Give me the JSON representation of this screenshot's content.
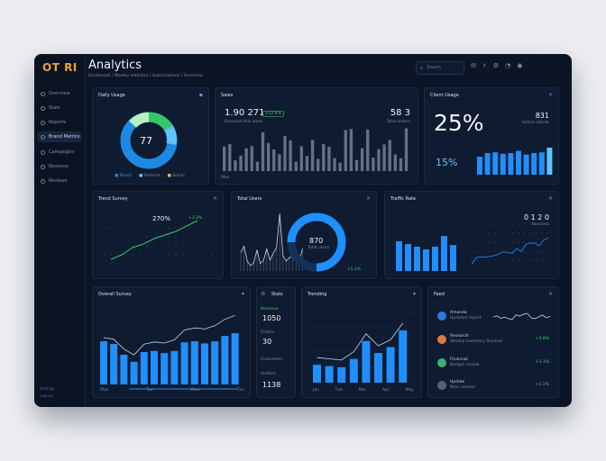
{
  "logo": "OT RI",
  "header": {
    "title": "Analytics",
    "breadcrumb": "Dashboard / Weekly statistics / Subscriptions / Overview",
    "search_placeholder": "Search"
  },
  "sidebar": {
    "items": [
      {
        "label": "Overview"
      },
      {
        "label": "Stats"
      },
      {
        "label": "Reports"
      },
      {
        "label": "Brand Metrics"
      },
      {
        "label": "Campaigns"
      },
      {
        "label": "Revenue"
      },
      {
        "label": "Reviews"
      }
    ],
    "footer": [
      "Settings",
      "Log out"
    ]
  },
  "cards": {
    "daily": {
      "title": "Daily Usage",
      "center": "77",
      "legend": [
        "Direct",
        "Referral",
        "Social"
      ]
    },
    "sales": {
      "title": "Sales",
      "left_value": "1.90 271",
      "badge": "+12.4%",
      "left_sub": "Revenue this week",
      "right_value": "58 3",
      "right_sub": "Total orders",
      "axis_label": "Mon"
    },
    "growth": {
      "title": "Client Usage",
      "big": "25%",
      "right_value": "831",
      "right_sub": "Active clients",
      "bottom": "15%"
    },
    "trend": {
      "title": "Trend Survey",
      "value": "270%",
      "sub": "Monthly change",
      "tag": "+3.2%"
    },
    "gauge": {
      "title": "Total Users",
      "center": "870",
      "center_sub": "Total users",
      "tag": "+5.1%"
    },
    "traffic": {
      "title": "Traffic Rate",
      "value": "0 1 2 0",
      "sub": "Sessions"
    },
    "overview": {
      "title": "Overall Survey",
      "axis": [
        "Mon",
        "Tue",
        "Wed",
        "Thu"
      ]
    },
    "kpi": {
      "title": "Stats",
      "items": [
        {
          "label": "Revenue",
          "value": "1050"
        },
        {
          "label": "Orders",
          "value": "30"
        },
        {
          "label": "Customers",
          "value": ""
        },
        {
          "label": "Visitors",
          "value": "1138"
        }
      ]
    },
    "trending": {
      "title": "Trending",
      "axis": [
        "Jan",
        "Feb",
        "Mar",
        "Apr",
        "May"
      ]
    },
    "feed": {
      "title": "Feed",
      "rows": [
        {
          "name": "Amanda",
          "sub": "Updated report",
          "value": ""
        },
        {
          "name": "Research",
          "sub": "Weekly summary finished",
          "value": "+5.8%"
        },
        {
          "name": "Financial",
          "sub": "Budget review",
          "value": "+3.1%"
        },
        {
          "name": "Update",
          "sub": "New release",
          "value": "+1.2%"
        }
      ]
    }
  },
  "colors": {
    "accent": "#1f8fff",
    "accent_light": "#5fc2ff",
    "positive": "#3dd26b",
    "bg": "#0c1526"
  }
}
